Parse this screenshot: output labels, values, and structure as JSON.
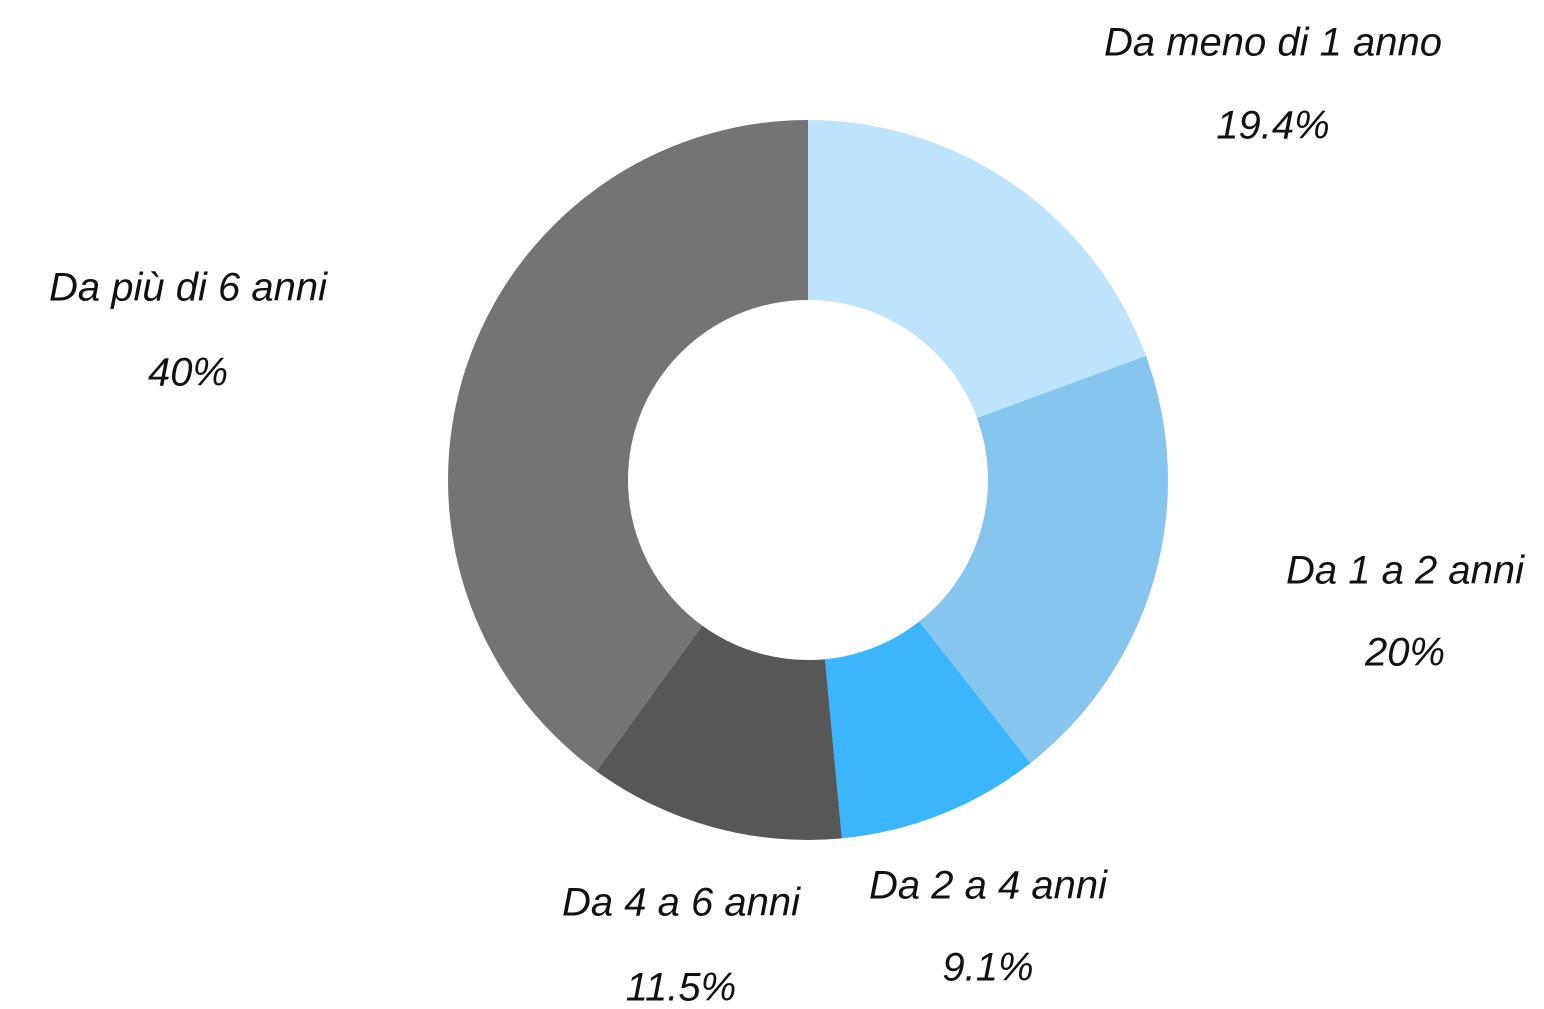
{
  "chart_data": {
    "type": "donut",
    "categories": [
      "Da meno di 1 anno",
      "Da 1 a 2 anni",
      "Da 2 a 4 anni",
      "Da 4 a 6 anni",
      "Da più di 6 anni"
    ],
    "values": [
      19.4,
      20,
      9.1,
      11.5,
      40
    ],
    "value_labels": [
      "19.4%",
      "20%",
      "9.1%",
      "11.5%",
      "40%"
    ],
    "colors": [
      "#bee3fc",
      "#86c5ee",
      "#3bb5fe",
      "#575757",
      "#747474"
    ]
  }
}
